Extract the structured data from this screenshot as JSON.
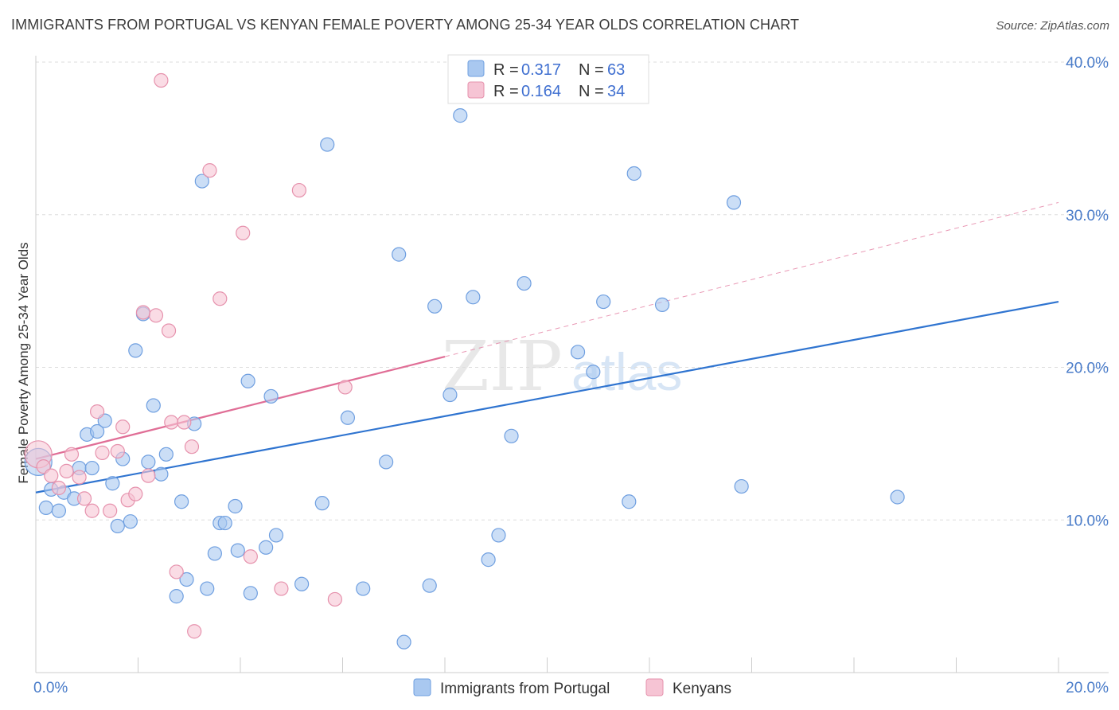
{
  "title": "IMMIGRANTS FROM PORTUGAL VS KENYAN FEMALE POVERTY AMONG 25-34 YEAR OLDS CORRELATION CHART",
  "source": "Source: ZipAtlas.com",
  "watermark": {
    "zip": "ZIP",
    "atlas": "atlas"
  },
  "colors": {
    "blue_fill": "#a9c8f0",
    "blue_stroke": "#6f9fe0",
    "blue_line": "#2f74d0",
    "pink_fill": "#f6c4d4",
    "pink_stroke": "#e692ad",
    "pink_line": "#e06e96",
    "grid": "#dddddd",
    "tick_label": "#4a7cc9"
  },
  "legend": {
    "rows": [
      {
        "r_label": "R = ",
        "r_value": "0.317",
        "n_label": "N = ",
        "n_value": "63"
      },
      {
        "r_label": "R = ",
        "r_value": "0.164",
        "n_label": "N = ",
        "n_value": "34"
      }
    ]
  },
  "bottom_legend": [
    {
      "label": "Immigrants from Portugal"
    },
    {
      "label": "Kenyans"
    }
  ],
  "chart_data": {
    "type": "scatter",
    "title": "IMMIGRANTS FROM PORTUGAL VS KENYAN FEMALE POVERTY AMONG 25-34 YEAR OLDS CORRELATION CHART",
    "xlabel": "",
    "ylabel": "Female Poverty Among 25-34 Year Olds",
    "xlim": [
      0,
      20
    ],
    "ylim": [
      0,
      40
    ],
    "x_tick_labels": [
      "0.0%",
      "20.0%"
    ],
    "y_ticks": [
      10,
      20,
      30,
      40
    ],
    "y_tick_labels": [
      "10.0%",
      "20.0%",
      "30.0%",
      "40.0%"
    ],
    "grid": true,
    "legend_position": "top-center",
    "series": [
      {
        "name": "Immigrants from Portugal",
        "color": "blue",
        "R": 0.317,
        "N": 63,
        "trend": {
          "x": [
            0,
            20
          ],
          "y": [
            11.8,
            24.3
          ]
        },
        "points": [
          {
            "x": 0.05,
            "y": 13.8,
            "big": true
          },
          {
            "x": 0.2,
            "y": 10.8
          },
          {
            "x": 0.3,
            "y": 12.0
          },
          {
            "x": 0.45,
            "y": 10.6
          },
          {
            "x": 0.55,
            "y": 11.8
          },
          {
            "x": 0.75,
            "y": 11.4
          },
          {
            "x": 0.85,
            "y": 13.4
          },
          {
            "x": 1.0,
            "y": 15.6
          },
          {
            "x": 1.1,
            "y": 13.4
          },
          {
            "x": 1.2,
            "y": 15.8
          },
          {
            "x": 1.35,
            "y": 16.5
          },
          {
            "x": 1.5,
            "y": 12.4
          },
          {
            "x": 1.6,
            "y": 9.6
          },
          {
            "x": 1.7,
            "y": 14.0
          },
          {
            "x": 1.85,
            "y": 9.9
          },
          {
            "x": 1.95,
            "y": 21.1
          },
          {
            "x": 2.1,
            "y": 23.5
          },
          {
            "x": 2.2,
            "y": 13.8
          },
          {
            "x": 2.3,
            "y": 17.5
          },
          {
            "x": 2.45,
            "y": 13.0
          },
          {
            "x": 2.55,
            "y": 14.3
          },
          {
            "x": 2.75,
            "y": 5.0
          },
          {
            "x": 2.85,
            "y": 11.2
          },
          {
            "x": 2.95,
            "y": 6.1
          },
          {
            "x": 3.1,
            "y": 16.3
          },
          {
            "x": 3.25,
            "y": 32.2
          },
          {
            "x": 3.35,
            "y": 5.5
          },
          {
            "x": 3.5,
            "y": 7.8
          },
          {
            "x": 3.6,
            "y": 9.8
          },
          {
            "x": 3.7,
            "y": 9.8
          },
          {
            "x": 3.9,
            "y": 10.9
          },
          {
            "x": 3.95,
            "y": 8.0
          },
          {
            "x": 4.15,
            "y": 19.1
          },
          {
            "x": 4.2,
            "y": 5.2
          },
          {
            "x": 4.5,
            "y": 8.2
          },
          {
            "x": 4.6,
            "y": 18.1
          },
          {
            "x": 4.7,
            "y": 9.0
          },
          {
            "x": 5.2,
            "y": 5.8
          },
          {
            "x": 5.6,
            "y": 11.1
          },
          {
            "x": 5.7,
            "y": 34.6
          },
          {
            "x": 6.1,
            "y": 16.7
          },
          {
            "x": 6.4,
            "y": 5.5
          },
          {
            "x": 6.85,
            "y": 13.8
          },
          {
            "x": 7.1,
            "y": 27.4
          },
          {
            "x": 7.2,
            "y": 2.0
          },
          {
            "x": 7.7,
            "y": 5.7
          },
          {
            "x": 7.8,
            "y": 24.0
          },
          {
            "x": 8.1,
            "y": 18.2
          },
          {
            "x": 8.3,
            "y": 36.5
          },
          {
            "x": 8.55,
            "y": 24.6
          },
          {
            "x": 8.85,
            "y": 7.4
          },
          {
            "x": 9.05,
            "y": 9.0
          },
          {
            "x": 9.3,
            "y": 15.5
          },
          {
            "x": 9.55,
            "y": 25.5
          },
          {
            "x": 10.6,
            "y": 21.0
          },
          {
            "x": 10.9,
            "y": 19.7
          },
          {
            "x": 11.1,
            "y": 24.3
          },
          {
            "x": 11.6,
            "y": 11.2
          },
          {
            "x": 11.7,
            "y": 32.7
          },
          {
            "x": 12.25,
            "y": 24.1
          },
          {
            "x": 13.65,
            "y": 30.8
          },
          {
            "x": 13.8,
            "y": 12.2
          },
          {
            "x": 16.85,
            "y": 11.5
          }
        ]
      },
      {
        "name": "Kenyans",
        "color": "pink",
        "R": 0.164,
        "N": 34,
        "trend": {
          "x": [
            0,
            8.0
          ],
          "y": [
            14.0,
            20.7
          ]
        },
        "trend_extension": {
          "x": [
            8.0,
            20
          ],
          "y": [
            20.7,
            30.8
          ]
        },
        "points": [
          {
            "x": 0.05,
            "y": 14.3,
            "big": true
          },
          {
            "x": 0.15,
            "y": 13.5
          },
          {
            "x": 0.3,
            "y": 12.9
          },
          {
            "x": 0.45,
            "y": 12.1
          },
          {
            "x": 0.6,
            "y": 13.2
          },
          {
            "x": 0.7,
            "y": 14.3
          },
          {
            "x": 0.85,
            "y": 12.8
          },
          {
            "x": 0.95,
            "y": 11.4
          },
          {
            "x": 1.1,
            "y": 10.6
          },
          {
            "x": 1.2,
            "y": 17.1
          },
          {
            "x": 1.3,
            "y": 14.4
          },
          {
            "x": 1.45,
            "y": 10.6
          },
          {
            "x": 1.6,
            "y": 14.5
          },
          {
            "x": 1.7,
            "y": 16.1
          },
          {
            "x": 1.8,
            "y": 11.3
          },
          {
            "x": 1.95,
            "y": 11.7
          },
          {
            "x": 2.1,
            "y": 23.6
          },
          {
            "x": 2.2,
            "y": 12.9
          },
          {
            "x": 2.35,
            "y": 23.4
          },
          {
            "x": 2.45,
            "y": 38.8
          },
          {
            "x": 2.6,
            "y": 22.4
          },
          {
            "x": 2.65,
            "y": 16.4
          },
          {
            "x": 2.75,
            "y": 6.6
          },
          {
            "x": 2.9,
            "y": 16.4
          },
          {
            "x": 3.05,
            "y": 14.8
          },
          {
            "x": 3.1,
            "y": 2.7
          },
          {
            "x": 3.4,
            "y": 32.9
          },
          {
            "x": 3.6,
            "y": 24.5
          },
          {
            "x": 4.05,
            "y": 28.8
          },
          {
            "x": 4.2,
            "y": 7.6
          },
          {
            "x": 4.8,
            "y": 5.5
          },
          {
            "x": 5.15,
            "y": 31.6
          },
          {
            "x": 5.85,
            "y": 4.8
          },
          {
            "x": 6.05,
            "y": 18.7
          }
        ]
      }
    ]
  }
}
